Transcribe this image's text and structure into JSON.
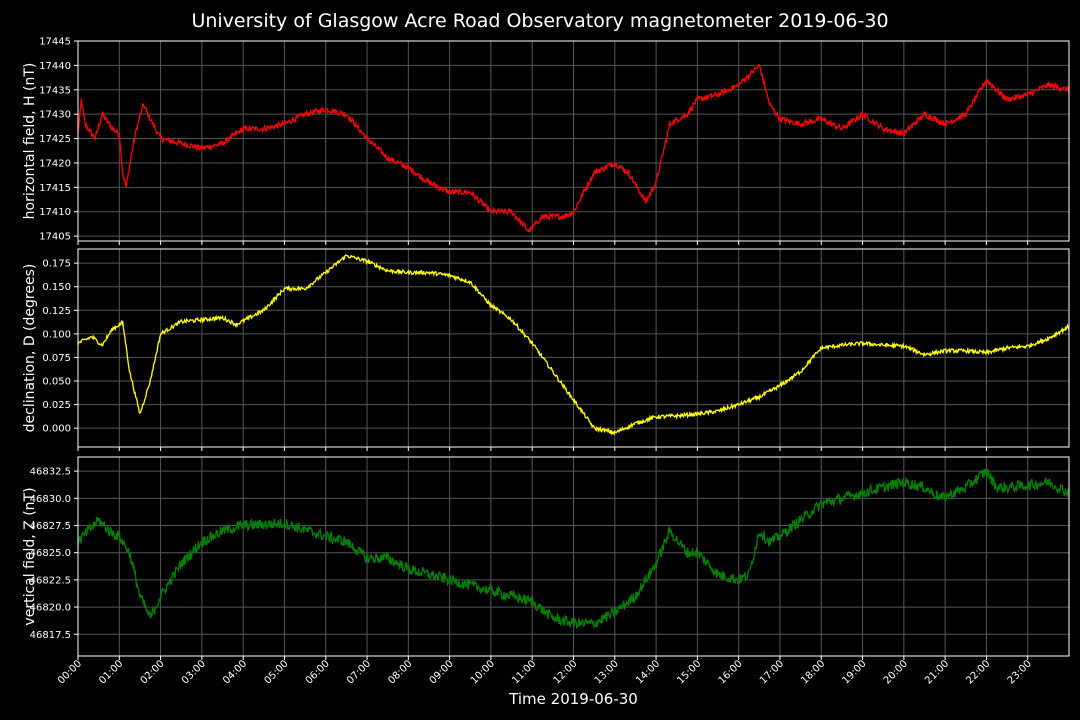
{
  "chart_data": {
    "type": "line",
    "title": "University of Glasgow Acre Road Observatory magnetometer 2019-06-30",
    "xlabel": "Time 2019-06-30",
    "x_ticks": [
      "00:00",
      "01:00",
      "02:00",
      "03:00",
      "04:00",
      "05:00",
      "06:00",
      "07:00",
      "08:00",
      "09:00",
      "10:00",
      "11:00",
      "12:00",
      "13:00",
      "14:00",
      "15:00",
      "16:00",
      "17:00",
      "18:00",
      "19:00",
      "20:00",
      "21:00",
      "22:00",
      "23:00"
    ],
    "xlim": [
      "00:00",
      "24:00"
    ],
    "grid": true,
    "panels": [
      {
        "name": "horizontal",
        "ylabel": "horizontal field, H (nT)",
        "color": "#ff0000",
        "ylim": [
          17404,
          17445
        ],
        "yticks": [
          17405,
          17410,
          17415,
          17420,
          17425,
          17430,
          17435,
          17440,
          17445
        ],
        "ytick_labels": [
          "17405",
          "17410",
          "17415",
          "17420",
          "17425",
          "17430",
          "17435",
          "17440",
          "17445"
        ],
        "noise": 0.6,
        "series": [
          {
            "x": "00:00",
            "y": 17426
          },
          {
            "x": "00:05",
            "y": 17433
          },
          {
            "x": "00:10",
            "y": 17428
          },
          {
            "x": "00:25",
            "y": 17425
          },
          {
            "x": "00:35",
            "y": 17430
          },
          {
            "x": "00:50",
            "y": 17427
          },
          {
            "x": "01:00",
            "y": 17426
          },
          {
            "x": "01:05",
            "y": 17418
          },
          {
            "x": "01:10",
            "y": 17415
          },
          {
            "x": "01:18",
            "y": 17422
          },
          {
            "x": "01:25",
            "y": 17427
          },
          {
            "x": "01:35",
            "y": 17432
          },
          {
            "x": "01:45",
            "y": 17429
          },
          {
            "x": "02:00",
            "y": 17425
          },
          {
            "x": "02:30",
            "y": 17424
          },
          {
            "x": "03:00",
            "y": 17423
          },
          {
            "x": "03:30",
            "y": 17424
          },
          {
            "x": "04:00",
            "y": 17427
          },
          {
            "x": "04:30",
            "y": 17427
          },
          {
            "x": "05:00",
            "y": 17428
          },
          {
            "x": "05:30",
            "y": 17430
          },
          {
            "x": "06:00",
            "y": 17431
          },
          {
            "x": "06:30",
            "y": 17430
          },
          {
            "x": "07:00",
            "y": 17425
          },
          {
            "x": "07:30",
            "y": 17421
          },
          {
            "x": "08:00",
            "y": 17419
          },
          {
            "x": "08:30",
            "y": 17416
          },
          {
            "x": "09:00",
            "y": 17414
          },
          {
            "x": "09:30",
            "y": 17414
          },
          {
            "x": "10:00",
            "y": 17410
          },
          {
            "x": "10:30",
            "y": 17410
          },
          {
            "x": "10:55",
            "y": 17406
          },
          {
            "x": "11:15",
            "y": 17409
          },
          {
            "x": "11:45",
            "y": 17409
          },
          {
            "x": "12:00",
            "y": 17410
          },
          {
            "x": "12:30",
            "y": 17418
          },
          {
            "x": "13:00",
            "y": 17420
          },
          {
            "x": "13:20",
            "y": 17418
          },
          {
            "x": "13:45",
            "y": 17412
          },
          {
            "x": "14:00",
            "y": 17416
          },
          {
            "x": "14:20",
            "y": 17428
          },
          {
            "x": "14:45",
            "y": 17430
          },
          {
            "x": "15:00",
            "y": 17433
          },
          {
            "x": "15:30",
            "y": 17434
          },
          {
            "x": "16:00",
            "y": 17436
          },
          {
            "x": "16:30",
            "y": 17440
          },
          {
            "x": "16:45",
            "y": 17432
          },
          {
            "x": "17:00",
            "y": 17429
          },
          {
            "x": "17:30",
            "y": 17428
          },
          {
            "x": "18:00",
            "y": 17429
          },
          {
            "x": "18:30",
            "y": 17427
          },
          {
            "x": "19:00",
            "y": 17430
          },
          {
            "x": "19:30",
            "y": 17427
          },
          {
            "x": "20:00",
            "y": 17426
          },
          {
            "x": "20:30",
            "y": 17430
          },
          {
            "x": "21:00",
            "y": 17428
          },
          {
            "x": "21:30",
            "y": 17430
          },
          {
            "x": "22:00",
            "y": 17437
          },
          {
            "x": "22:30",
            "y": 17433
          },
          {
            "x": "23:00",
            "y": 17434
          },
          {
            "x": "23:30",
            "y": 17436
          },
          {
            "x": "24:00",
            "y": 17435
          }
        ]
      },
      {
        "name": "declination",
        "ylabel": "declination, D (degrees)",
        "color": "#ffff00",
        "ylim": [
          -0.02,
          0.19
        ],
        "yticks": [
          0.0,
          0.025,
          0.05,
          0.075,
          0.1,
          0.125,
          0.15,
          0.175
        ],
        "ytick_labels": [
          "0.000",
          "0.025",
          "0.050",
          "0.075",
          "0.100",
          "0.125",
          "0.150",
          "0.175"
        ],
        "noise": 0.002,
        "series": [
          {
            "x": "00:00",
            "y": 0.09
          },
          {
            "x": "00:20",
            "y": 0.097
          },
          {
            "x": "00:35",
            "y": 0.088
          },
          {
            "x": "00:50",
            "y": 0.105
          },
          {
            "x": "01:05",
            "y": 0.112
          },
          {
            "x": "01:15",
            "y": 0.06
          },
          {
            "x": "01:30",
            "y": 0.015
          },
          {
            "x": "01:45",
            "y": 0.05
          },
          {
            "x": "02:00",
            "y": 0.1
          },
          {
            "x": "02:30",
            "y": 0.113
          },
          {
            "x": "03:00",
            "y": 0.115
          },
          {
            "x": "03:30",
            "y": 0.117
          },
          {
            "x": "03:50",
            "y": 0.11
          },
          {
            "x": "04:30",
            "y": 0.125
          },
          {
            "x": "05:00",
            "y": 0.148
          },
          {
            "x": "05:30",
            "y": 0.148
          },
          {
            "x": "06:00",
            "y": 0.165
          },
          {
            "x": "06:30",
            "y": 0.183
          },
          {
            "x": "07:00",
            "y": 0.177
          },
          {
            "x": "07:30",
            "y": 0.167
          },
          {
            "x": "08:00",
            "y": 0.165
          },
          {
            "x": "08:30",
            "y": 0.165
          },
          {
            "x": "09:00",
            "y": 0.162
          },
          {
            "x": "09:30",
            "y": 0.155
          },
          {
            "x": "10:00",
            "y": 0.13
          },
          {
            "x": "10:30",
            "y": 0.115
          },
          {
            "x": "11:00",
            "y": 0.09
          },
          {
            "x": "11:30",
            "y": 0.06
          },
          {
            "x": "12:00",
            "y": 0.03
          },
          {
            "x": "12:30",
            "y": 0.0
          },
          {
            "x": "13:00",
            "y": -0.005
          },
          {
            "x": "13:30",
            "y": 0.005
          },
          {
            "x": "14:00",
            "y": 0.012
          },
          {
            "x": "14:30",
            "y": 0.013
          },
          {
            "x": "15:00",
            "y": 0.015
          },
          {
            "x": "15:30",
            "y": 0.018
          },
          {
            "x": "16:00",
            "y": 0.025
          },
          {
            "x": "16:30",
            "y": 0.033
          },
          {
            "x": "17:00",
            "y": 0.045
          },
          {
            "x": "17:30",
            "y": 0.06
          },
          {
            "x": "18:00",
            "y": 0.085
          },
          {
            "x": "18:30",
            "y": 0.088
          },
          {
            "x": "19:00",
            "y": 0.09
          },
          {
            "x": "19:30",
            "y": 0.088
          },
          {
            "x": "20:00",
            "y": 0.087
          },
          {
            "x": "20:30",
            "y": 0.078
          },
          {
            "x": "21:00",
            "y": 0.082
          },
          {
            "x": "21:30",
            "y": 0.082
          },
          {
            "x": "22:00",
            "y": 0.08
          },
          {
            "x": "22:30",
            "y": 0.085
          },
          {
            "x": "23:00",
            "y": 0.087
          },
          {
            "x": "23:30",
            "y": 0.095
          },
          {
            "x": "24:00",
            "y": 0.108
          }
        ]
      },
      {
        "name": "vertical",
        "ylabel": "vertical field, Z (nT)",
        "color": "#008000",
        "ylim": [
          46815.5,
          46833.8
        ],
        "yticks": [
          46817.5,
          46820.0,
          46822.5,
          46825.0,
          46827.5,
          46830.0,
          46832.5
        ],
        "ytick_labels": [
          "46817.5",
          "46820.0",
          "46822.5",
          "46825.0",
          "46827.5",
          "46830.0",
          "46832.5"
        ],
        "noise": 0.5,
        "series": [
          {
            "x": "00:00",
            "y": 46826
          },
          {
            "x": "00:15",
            "y": 46827
          },
          {
            "x": "00:30",
            "y": 46828
          },
          {
            "x": "00:45",
            "y": 46827
          },
          {
            "x": "01:00",
            "y": 46826.5
          },
          {
            "x": "01:15",
            "y": 46825
          },
          {
            "x": "01:30",
            "y": 46821
          },
          {
            "x": "01:45",
            "y": 46819
          },
          {
            "x": "02:00",
            "y": 46821
          },
          {
            "x": "02:30",
            "y": 46824
          },
          {
            "x": "03:00",
            "y": 46826
          },
          {
            "x": "03:30",
            "y": 46827
          },
          {
            "x": "04:00",
            "y": 46827.5
          },
          {
            "x": "05:00",
            "y": 46827.7
          },
          {
            "x": "06:00",
            "y": 46826.5
          },
          {
            "x": "06:30",
            "y": 46826
          },
          {
            "x": "07:00",
            "y": 46824.5
          },
          {
            "x": "07:30",
            "y": 46824.5
          },
          {
            "x": "08:00",
            "y": 46823.5
          },
          {
            "x": "08:30",
            "y": 46823
          },
          {
            "x": "09:00",
            "y": 46822.5
          },
          {
            "x": "09:30",
            "y": 46822
          },
          {
            "x": "10:00",
            "y": 46821.5
          },
          {
            "x": "10:30",
            "y": 46821
          },
          {
            "x": "11:00",
            "y": 46820.5
          },
          {
            "x": "11:30",
            "y": 46819
          },
          {
            "x": "12:00",
            "y": 46818.5
          },
          {
            "x": "12:30",
            "y": 46818.5
          },
          {
            "x": "13:00",
            "y": 46819.5
          },
          {
            "x": "13:30",
            "y": 46821
          },
          {
            "x": "14:00",
            "y": 46824
          },
          {
            "x": "14:20",
            "y": 46827
          },
          {
            "x": "14:45",
            "y": 46825
          },
          {
            "x": "15:00",
            "y": 46825
          },
          {
            "x": "15:30",
            "y": 46823
          },
          {
            "x": "16:00",
            "y": 46822.5
          },
          {
            "x": "16:15",
            "y": 46823
          },
          {
            "x": "16:30",
            "y": 46827
          },
          {
            "x": "16:45",
            "y": 46826
          },
          {
            "x": "17:00",
            "y": 46826.5
          },
          {
            "x": "17:30",
            "y": 46828
          },
          {
            "x": "18:00",
            "y": 46829.5
          },
          {
            "x": "18:30",
            "y": 46830
          },
          {
            "x": "19:00",
            "y": 46830.5
          },
          {
            "x": "19:30",
            "y": 46831
          },
          {
            "x": "20:00",
            "y": 46831.5
          },
          {
            "x": "20:30",
            "y": 46831
          },
          {
            "x": "20:55",
            "y": 46830
          },
          {
            "x": "21:30",
            "y": 46831
          },
          {
            "x": "22:00",
            "y": 46832.5
          },
          {
            "x": "22:15",
            "y": 46831
          },
          {
            "x": "22:30",
            "y": 46831
          },
          {
            "x": "23:00",
            "y": 46831.2
          },
          {
            "x": "23:30",
            "y": 46831.5
          },
          {
            "x": "24:00",
            "y": 46830.5
          }
        ]
      }
    ]
  }
}
